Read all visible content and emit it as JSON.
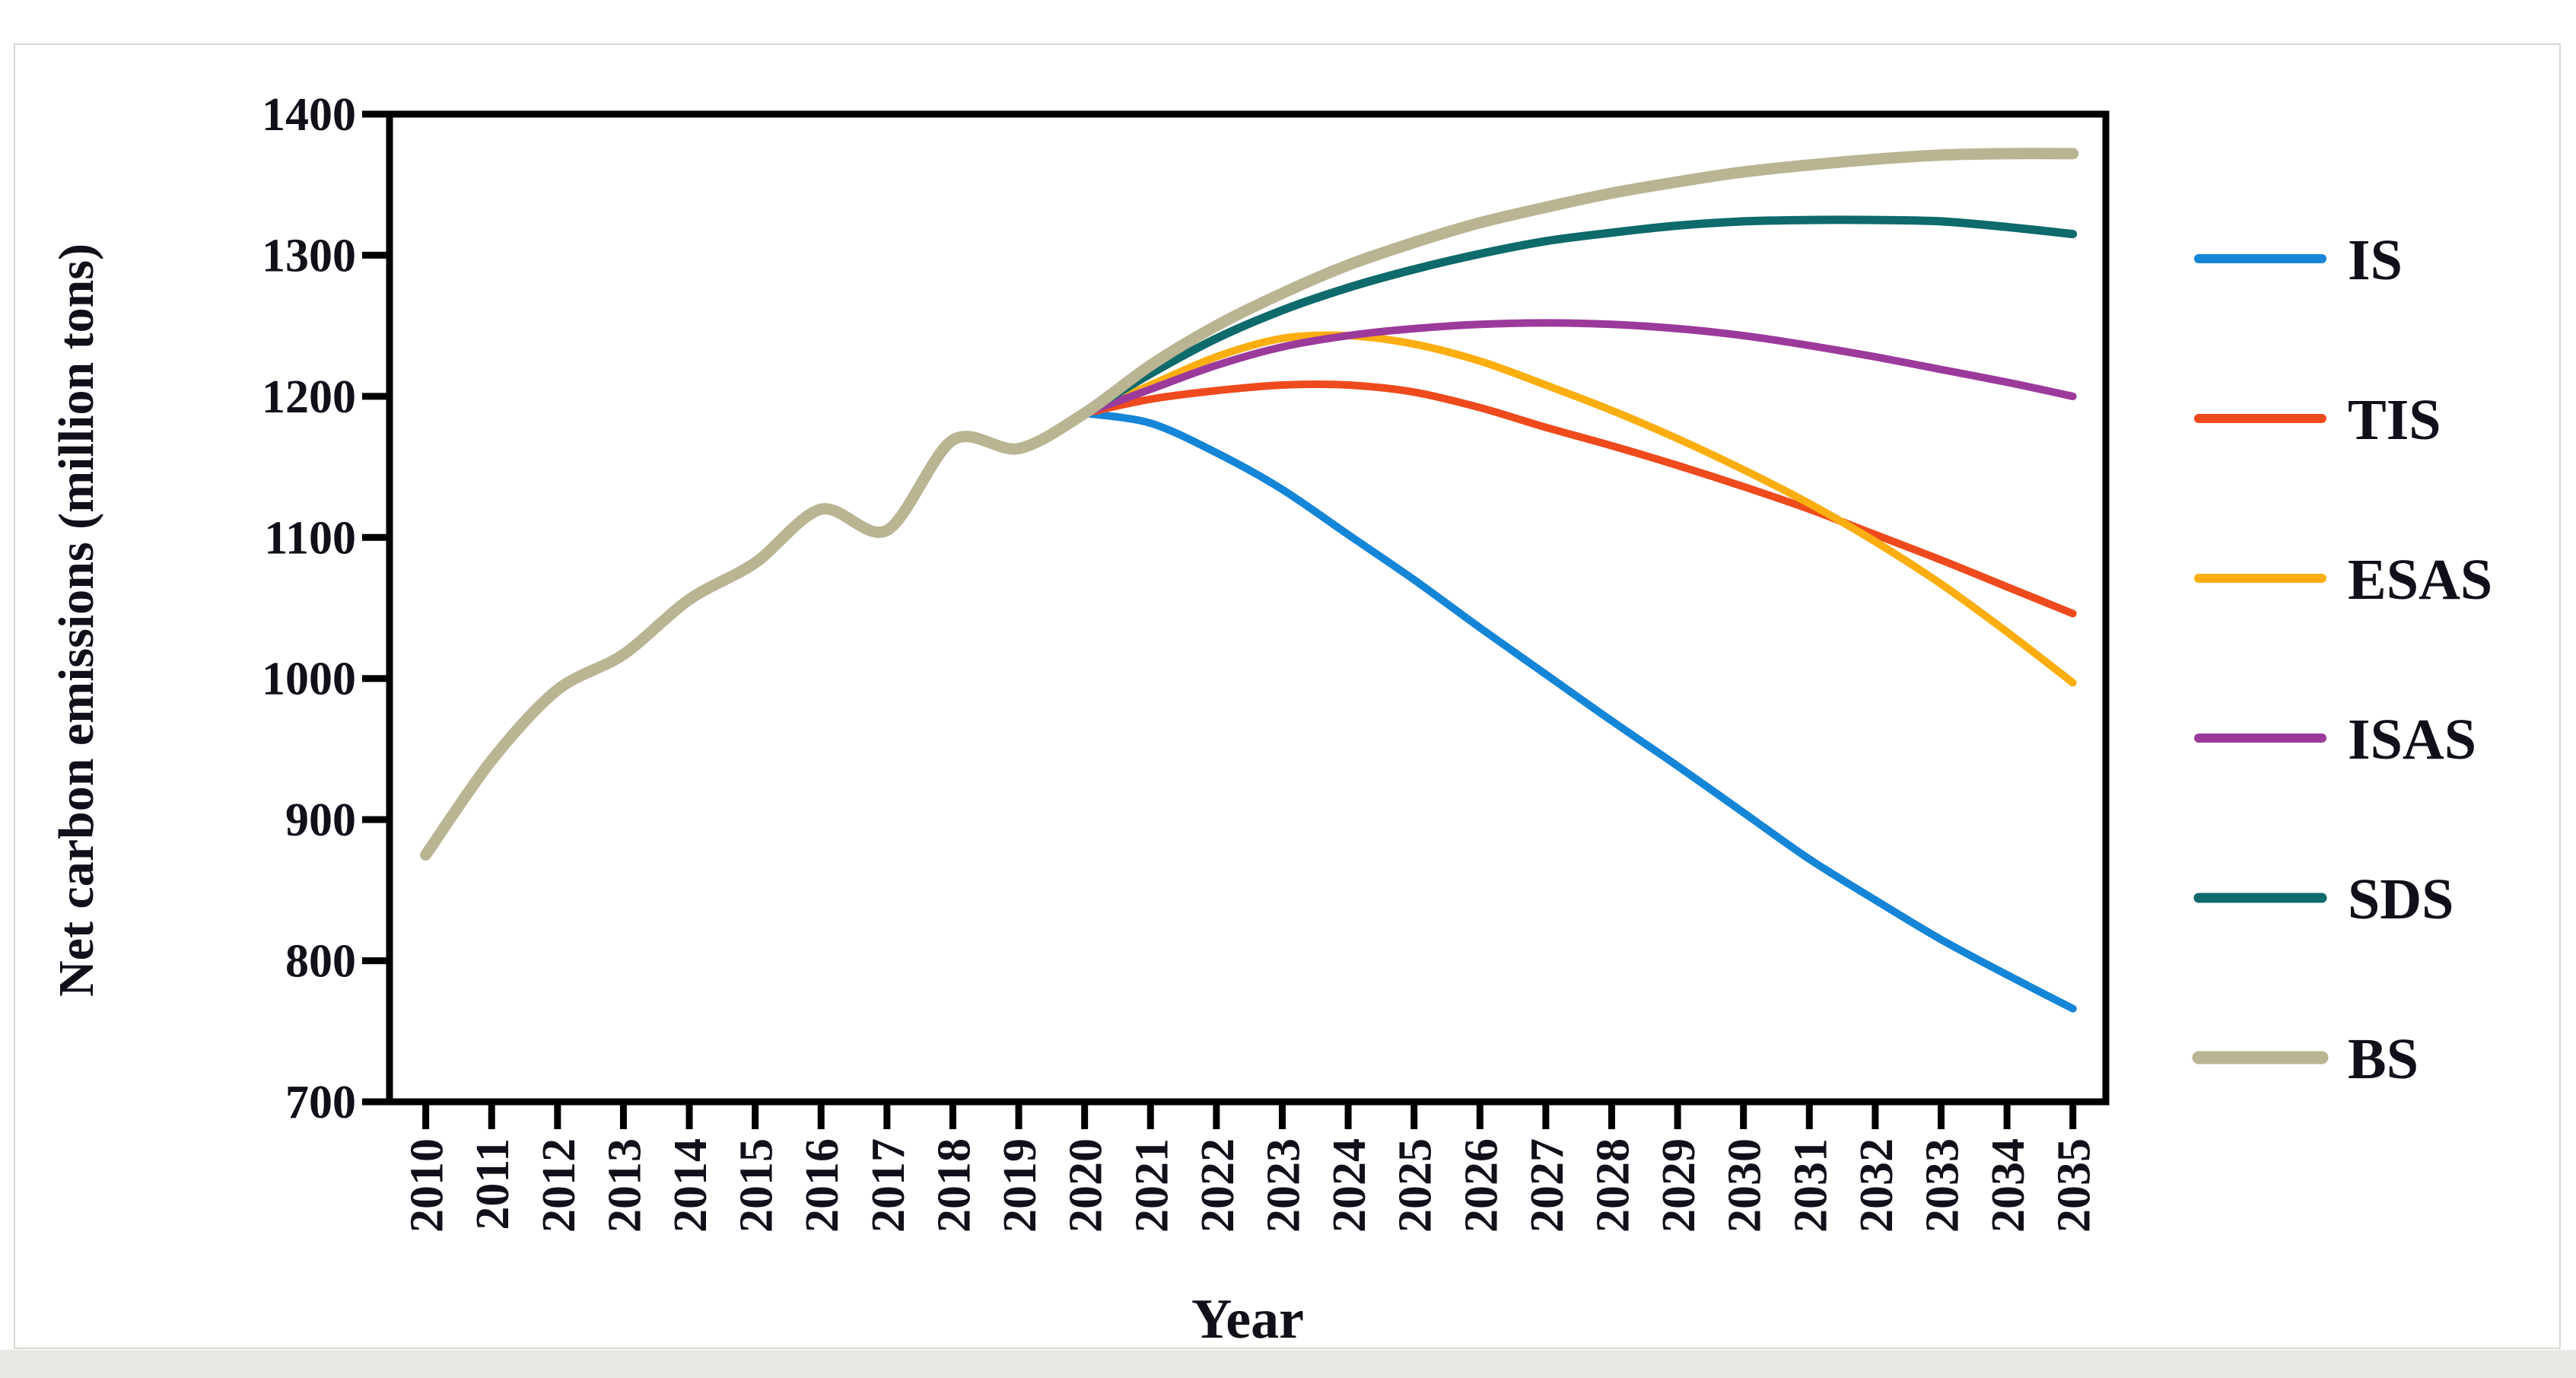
{
  "page": {
    "card_border_color": "#d9d8d2",
    "bottom_strip_color": "#e9e8e2",
    "background_color": "#ffffff"
  },
  "chart_data": {
    "type": "line",
    "title": "",
    "xlabel": "Year",
    "ylabel": "Net carbon emissions (million tons)",
    "axis_color": "#000000",
    "text_color": "#10101a",
    "grid": false,
    "legend_position": "right",
    "x": [
      2010,
      2011,
      2012,
      2013,
      2014,
      2015,
      2016,
      2017,
      2018,
      2019,
      2020,
      2021,
      2022,
      2023,
      2024,
      2025,
      2026,
      2027,
      2028,
      2029,
      2030,
      2031,
      2032,
      2033,
      2034,
      2035
    ],
    "xlim": [
      2009.45,
      2035.5
    ],
    "ylim": [
      700,
      1400
    ],
    "ytick_step": 100,
    "yticks": [
      700,
      800,
      900,
      1000,
      1100,
      1200,
      1300,
      1400
    ],
    "series": [
      {
        "name": "IS",
        "color": "#1585d8",
        "width": 10,
        "values": [
          null,
          null,
          null,
          null,
          null,
          null,
          null,
          null,
          null,
          null,
          1188,
          1181,
          1160,
          1134,
          1102,
          1070,
          1036,
          1003,
          970,
          938,
          905,
          872,
          843,
          815,
          790,
          766
        ]
      },
      {
        "name": "TIS",
        "color": "#ef4a1d",
        "width": 10,
        "values": [
          null,
          null,
          null,
          null,
          null,
          null,
          null,
          null,
          null,
          null,
          1188,
          1198,
          1204,
          1208,
          1208,
          1203,
          1192,
          1178,
          1165,
          1151,
          1136,
          1120,
          1102,
          1084,
          1065,
          1046
        ]
      },
      {
        "name": "ESAS",
        "color": "#fcae10",
        "width": 10,
        "values": [
          null,
          null,
          null,
          null,
          null,
          null,
          null,
          null,
          null,
          null,
          1188,
          1208,
          1228,
          1241,
          1243,
          1237,
          1225,
          1208,
          1190,
          1170,
          1148,
          1124,
          1097,
          1067,
          1033,
          997
        ]
      },
      {
        "name": "ISAS",
        "color": "#9c3a9c",
        "width": 10,
        "values": [
          null,
          null,
          null,
          null,
          null,
          null,
          null,
          null,
          null,
          null,
          1188,
          1205,
          1222,
          1235,
          1243,
          1248,
          1251,
          1252,
          1251,
          1248,
          1243,
          1236,
          1228,
          1219,
          1210,
          1200
        ]
      },
      {
        "name": "SDS",
        "color": "#0e6a6b",
        "width": 11,
        "values": [
          null,
          null,
          null,
          null,
          null,
          null,
          null,
          null,
          null,
          null,
          1188,
          1216,
          1241,
          1261,
          1277,
          1290,
          1301,
          1310,
          1316,
          1321,
          1324,
          1325,
          1325,
          1324,
          1320,
          1315
        ]
      },
      {
        "name": "BS",
        "color": "#b9b492",
        "width": 15,
        "values": [
          875,
          942,
          992,
          1017,
          1056,
          1082,
          1120,
          1105,
          1169,
          1163,
          1188,
          1222,
          1250,
          1273,
          1293,
          1309,
          1323,
          1334,
          1344,
          1352,
          1359,
          1364,
          1368,
          1371,
          1372,
          1372
        ]
      }
    ]
  }
}
